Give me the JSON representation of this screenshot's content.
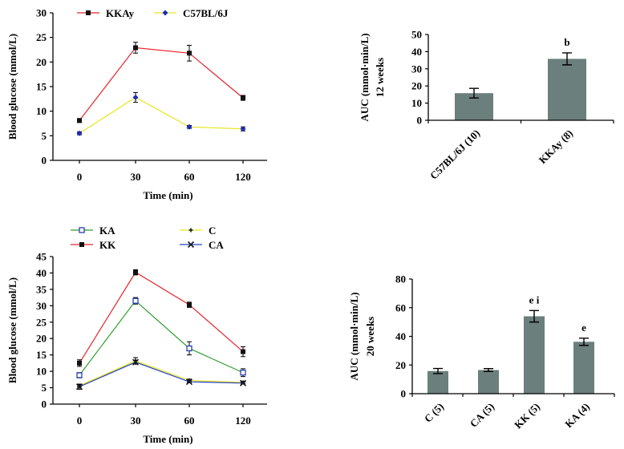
{
  "colors": {
    "kkay": "#e8242b",
    "c57": "#e6e61e",
    "c57_marker": "#1d2ab8",
    "kk": "#e8242b",
    "ka": "#2e9e2e",
    "ka_marker": "#2540b0",
    "c": "#e6e61e",
    "ca": "#2540c8",
    "ca_marker": "#1a1a1a",
    "bar": "#6b7f7c",
    "axis": "#000000"
  },
  "chart_data": [
    {
      "type": "line",
      "xlabel": "Time (min)",
      "ylabel": "Blood glucose (mmol/L)",
      "ylim": [
        0,
        30
      ],
      "yticks": [
        "0",
        "5",
        "10",
        "15",
        "20",
        "25",
        "30"
      ],
      "categories": [
        "0",
        "30",
        "60",
        "120"
      ],
      "legend_placement": "top",
      "series": [
        {
          "name": "KKAy",
          "values": [
            8.1,
            22.9,
            21.8,
            12.7
          ],
          "errors": [
            0.4,
            1.1,
            1.6,
            0.5
          ]
        },
        {
          "name": "C57BL/6J",
          "values": [
            5.5,
            12.8,
            6.8,
            6.4
          ],
          "errors": [
            0.3,
            1.0,
            0.3,
            0.4
          ]
        }
      ]
    },
    {
      "type": "bar",
      "ylabel": "AUC (mmol·min/L)",
      "ylabel2": "12 weeks",
      "ylim": [
        0,
        50
      ],
      "yticks": [
        "0",
        "10",
        "20",
        "30",
        "40",
        "50"
      ],
      "categories": [
        "C57BL/6J (10)",
        "KKAy (8)"
      ],
      "values": [
        15.8,
        35.8
      ],
      "errors": [
        2.8,
        3.5
      ],
      "annotations": [
        "",
        "b"
      ]
    },
    {
      "type": "line",
      "xlabel": "Time (min)",
      "ylabel": "Blood glucose (mmol/L)",
      "ylim": [
        0,
        45
      ],
      "yticks": [
        "0",
        "5",
        "10",
        "15",
        "20",
        "25",
        "30",
        "35",
        "40",
        "45"
      ],
      "categories": [
        "0",
        "30",
        "60",
        "120"
      ],
      "legend_placement": "top",
      "series": [
        {
          "name": "KA",
          "values": [
            8.8,
            31.5,
            17.0,
            9.6
          ],
          "errors": [
            0.8,
            1.0,
            2.0,
            1.2
          ]
        },
        {
          "name": "KK",
          "values": [
            12.5,
            40.2,
            30.3,
            16.0
          ],
          "errors": [
            1.0,
            0.8,
            0.8,
            1.5
          ]
        },
        {
          "name": "C",
          "values": [
            5.6,
            13.2,
            7.2,
            6.6
          ],
          "errors": [
            0.3,
            1.0,
            0.4,
            0.4
          ]
        },
        {
          "name": "CA",
          "values": [
            5.3,
            12.8,
            6.8,
            6.4
          ],
          "errors": [
            0.8,
            0.6,
            0.3,
            0.3
          ]
        }
      ]
    },
    {
      "type": "bar",
      "ylabel": "AUC (mmol·min/L)",
      "ylabel2": "20 weeks",
      "ylim": [
        0,
        80
      ],
      "yticks": [
        "0",
        "20",
        "40",
        "60",
        "80"
      ],
      "categories": [
        "C (5)",
        "CA (5)",
        "KK (5)",
        "KA (4)"
      ],
      "values": [
        15.8,
        16.5,
        54.0,
        36.2
      ],
      "errors": [
        1.8,
        1.0,
        4.0,
        2.5
      ],
      "annotations": [
        "",
        "",
        "e i",
        "e"
      ]
    }
  ]
}
